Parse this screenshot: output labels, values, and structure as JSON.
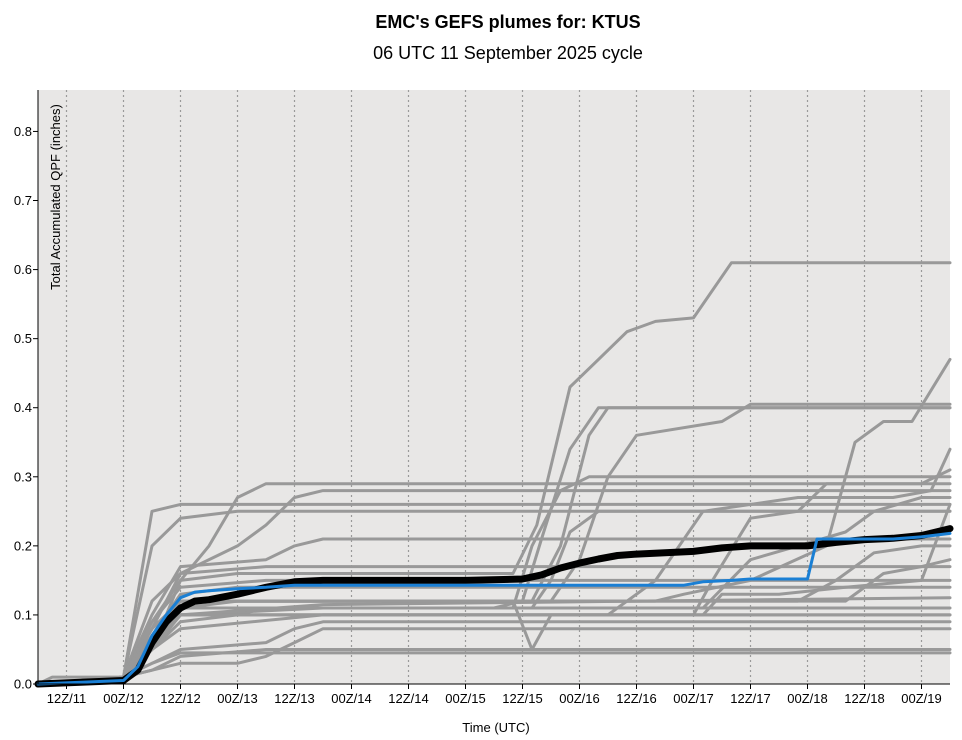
{
  "chart_data": {
    "type": "line",
    "title": "EMC's GEFS plumes for: KTUS",
    "subtitle": "06 UTC 11 September 2025 cycle",
    "xlabel": "Time (UTC)",
    "ylabel": "Total Accumulated QPF  (inches)",
    "x_unit": "hours after 06 UTC 11 September 2025",
    "xlim": [
      0,
      192
    ],
    "ylim": [
      0,
      0.86
    ],
    "yticks": [
      0.0,
      0.1,
      0.2,
      0.3,
      0.4,
      0.5,
      0.6,
      0.7,
      0.8
    ],
    "ytick_labels": [
      "0.0",
      "0.1",
      "0.2",
      "0.3",
      "0.4",
      "0.5",
      "0.6",
      "0.7",
      "0.8"
    ],
    "xticks": [
      6,
      18,
      30,
      42,
      54,
      66,
      78,
      90,
      102,
      114,
      126,
      138,
      150,
      162,
      174,
      186
    ],
    "xtick_labels": [
      "12Z/11",
      "00Z/12",
      "12Z/12",
      "00Z/13",
      "12Z/13",
      "00Z/14",
      "12Z/14",
      "00Z/15",
      "12Z/15",
      "00Z/16",
      "12Z/16",
      "00Z/17",
      "12Z/17",
      "00Z/18",
      "12Z/18",
      "00Z/19"
    ],
    "grid": "vertical dotted",
    "colors": {
      "plot_background": "#e8e7e6",
      "member": "#999999",
      "mean": "#000000",
      "control": "#1a7fd4",
      "grid": "#9a9a9a"
    },
    "members": [
      {
        "x": [
          0,
          3,
          18,
          24,
          30,
          192
        ],
        "y": [
          0.0,
          0.01,
          0.01,
          0.25,
          0.26,
          0.26
        ]
      },
      {
        "x": [
          0,
          18,
          24,
          30,
          42,
          54,
          192
        ],
        "y": [
          0.0,
          0.01,
          0.2,
          0.24,
          0.25,
          0.25,
          0.25
        ]
      },
      {
        "x": [
          0,
          18,
          24,
          30,
          36,
          42,
          48,
          54,
          60,
          192
        ],
        "y": [
          0.0,
          0.01,
          0.05,
          0.15,
          0.2,
          0.27,
          0.29,
          0.29,
          0.29,
          0.29
        ]
      },
      {
        "x": [
          0,
          18,
          24,
          30,
          42,
          48,
          54,
          60,
          192
        ],
        "y": [
          0.0,
          0.01,
          0.08,
          0.16,
          0.2,
          0.23,
          0.27,
          0.28,
          0.28
        ]
      },
      {
        "x": [
          0,
          18,
          24,
          30,
          48,
          54,
          60,
          192
        ],
        "y": [
          0.0,
          0.01,
          0.1,
          0.17,
          0.18,
          0.2,
          0.21,
          0.21
        ]
      },
      {
        "x": [
          0,
          18,
          24,
          30,
          48,
          192
        ],
        "y": [
          0.0,
          0.01,
          0.12,
          0.16,
          0.17,
          0.17
        ]
      },
      {
        "x": [
          0,
          18,
          24,
          30,
          42,
          192
        ],
        "y": [
          0.0,
          0.01,
          0.06,
          0.11,
          0.11,
          0.11
        ]
      },
      {
        "x": [
          0,
          18,
          24,
          30,
          192
        ],
        "y": [
          0.0,
          0.01,
          0.05,
          0.1,
          0.1
        ]
      },
      {
        "x": [
          0,
          18,
          24,
          30,
          48,
          54,
          60,
          192
        ],
        "y": [
          0.0,
          0.01,
          0.03,
          0.05,
          0.06,
          0.08,
          0.09,
          0.09
        ]
      },
      {
        "x": [
          0,
          18,
          24,
          30,
          42,
          48,
          54,
          60,
          192
        ],
        "y": [
          0.0,
          0.01,
          0.02,
          0.03,
          0.03,
          0.04,
          0.06,
          0.08,
          0.08
        ]
      },
      {
        "x": [
          0,
          18,
          24,
          30,
          48,
          192
        ],
        "y": [
          0.0,
          0.01,
          0.02,
          0.04,
          0.05,
          0.05
        ]
      },
      {
        "x": [
          0,
          18,
          24,
          30,
          192
        ],
        "y": [
          0.0,
          0.01,
          0.03,
          0.045,
          0.045
        ]
      },
      {
        "x": [
          0,
          18,
          24,
          30,
          42,
          192
        ],
        "y": [
          0.0,
          0.01,
          0.07,
          0.13,
          0.14,
          0.14
        ]
      },
      {
        "x": [
          0,
          18,
          24,
          30,
          48,
          192
        ],
        "y": [
          0.0,
          0.01,
          0.09,
          0.14,
          0.15,
          0.15
        ]
      },
      {
        "x": [
          0,
          18,
          24,
          30,
          42,
          48,
          60,
          100,
          105,
          112,
          118,
          124,
          130,
          138,
          146,
          192
        ],
        "y": [
          0.0,
          0.01,
          0.09,
          0.15,
          0.16,
          0.16,
          0.16,
          0.16,
          0.23,
          0.43,
          0.47,
          0.51,
          0.525,
          0.53,
          0.61,
          0.61
        ]
      },
      {
        "x": [
          0,
          18,
          24,
          30,
          42,
          60,
          104,
          110,
          116,
          120,
          192
        ],
        "y": [
          0.0,
          0.01,
          0.06,
          0.11,
          0.12,
          0.12,
          0.12,
          0.2,
          0.36,
          0.4,
          0.4
        ]
      },
      {
        "x": [
          0,
          18,
          24,
          30,
          60,
          108,
          114,
          120,
          126,
          144,
          150,
          192
        ],
        "y": [
          0.0,
          0.01,
          0.07,
          0.12,
          0.12,
          0.12,
          0.18,
          0.3,
          0.36,
          0.38,
          0.405,
          0.405
        ]
      },
      {
        "x": [
          0,
          18,
          24,
          30,
          42,
          48,
          60,
          78,
          96,
          102,
          106,
          112,
          118,
          192
        ],
        "y": [
          0.0,
          0.01,
          0.05,
          0.09,
          0.1,
          0.11,
          0.11,
          0.11,
          0.11,
          0.12,
          0.21,
          0.34,
          0.4,
          0.4
        ]
      },
      {
        "x": [
          0,
          18,
          24,
          30,
          60,
          100,
          104,
          110,
          116,
          126,
          192
        ],
        "y": [
          0.0,
          0.01,
          0.05,
          0.1,
          0.11,
          0.11,
          0.2,
          0.28,
          0.3,
          0.3,
          0.3
        ]
      },
      {
        "x": [
          0,
          18,
          24,
          30,
          60,
          104,
          108,
          112,
          118,
          192
        ],
        "y": [
          0.0,
          0.01,
          0.06,
          0.11,
          0.11,
          0.11,
          0.15,
          0.22,
          0.25,
          0.25
        ]
      },
      {
        "x": [
          0,
          18,
          24,
          30,
          60,
          100,
          104,
          108,
          192
        ],
        "y": [
          0.0,
          0.01,
          0.07,
          0.12,
          0.12,
          0.12,
          0.05,
          0.1,
          0.1
        ]
      },
      {
        "x": [
          0,
          18,
          24,
          30,
          60,
          130,
          136,
          150,
          166,
          172,
          178,
          184,
          192
        ],
        "y": [
          0.0,
          0.01,
          0.08,
          0.12,
          0.12,
          0.12,
          0.13,
          0.15,
          0.2,
          0.35,
          0.38,
          0.38,
          0.47
        ]
      },
      {
        "x": [
          0,
          18,
          24,
          30,
          60,
          138,
          142,
          150,
          160,
          166,
          176,
          186,
          192
        ],
        "y": [
          0.0,
          0.01,
          0.05,
          0.1,
          0.1,
          0.1,
          0.15,
          0.24,
          0.25,
          0.29,
          0.29,
          0.29,
          0.31
        ]
      },
      {
        "x": [
          0,
          18,
          24,
          30,
          60,
          140,
          150,
          160,
          170,
          176,
          186,
          192
        ],
        "y": [
          0.0,
          0.01,
          0.07,
          0.11,
          0.11,
          0.11,
          0.18,
          0.2,
          0.22,
          0.25,
          0.27,
          0.27
        ]
      },
      {
        "x": [
          0,
          18,
          24,
          30,
          60,
          120,
          130,
          140,
          160,
          166,
          180,
          188,
          192
        ],
        "y": [
          0.0,
          0.01,
          0.06,
          0.1,
          0.1,
          0.1,
          0.15,
          0.25,
          0.27,
          0.27,
          0.27,
          0.28,
          0.34
        ]
      },
      {
        "x": [
          0,
          18,
          24,
          30,
          60,
          140,
          144,
          156,
          170,
          186,
          192
        ],
        "y": [
          0.0,
          0.01,
          0.05,
          0.08,
          0.1,
          0.1,
          0.13,
          0.13,
          0.14,
          0.15,
          0.26
        ]
      },
      {
        "x": [
          0,
          18,
          24,
          30,
          60,
          160,
          168,
          176,
          186,
          192
        ],
        "y": [
          0.0,
          0.01,
          0.08,
          0.12,
          0.12,
          0.12,
          0.15,
          0.19,
          0.2,
          0.2
        ]
      },
      {
        "x": [
          0,
          18,
          24,
          30,
          60,
          192
        ],
        "y": [
          0.0,
          0.01,
          0.06,
          0.1,
          0.115,
          0.125
        ]
      },
      {
        "x": [
          0,
          18,
          24,
          30,
          60,
          170,
          178,
          186,
          192
        ],
        "y": [
          0.0,
          0.01,
          0.07,
          0.12,
          0.12,
          0.12,
          0.16,
          0.17,
          0.18
        ]
      }
    ],
    "mean": {
      "x": [
        0,
        18,
        21,
        24,
        27,
        30,
        33,
        36,
        42,
        48,
        54,
        60,
        66,
        78,
        90,
        102,
        106,
        110,
        114,
        118,
        122,
        126,
        132,
        138,
        144,
        150,
        156,
        162,
        168,
        174,
        180,
        186,
        192
      ],
      "y": [
        0.0,
        0.005,
        0.02,
        0.06,
        0.09,
        0.11,
        0.12,
        0.122,
        0.13,
        0.14,
        0.148,
        0.15,
        0.15,
        0.15,
        0.15,
        0.152,
        0.158,
        0.168,
        0.175,
        0.181,
        0.186,
        0.188,
        0.19,
        0.192,
        0.197,
        0.2,
        0.2,
        0.2,
        0.205,
        0.209,
        0.211,
        0.215,
        0.225
      ]
    },
    "control": {
      "x": [
        0,
        18,
        21,
        24,
        27,
        30,
        33,
        36,
        42,
        48,
        54,
        60,
        66,
        90,
        102,
        114,
        126,
        136,
        140,
        146,
        150,
        158,
        162,
        164,
        170,
        180,
        186,
        192
      ],
      "y": [
        0.0,
        0.005,
        0.025,
        0.07,
        0.1,
        0.125,
        0.133,
        0.135,
        0.138,
        0.14,
        0.143,
        0.143,
        0.143,
        0.143,
        0.143,
        0.143,
        0.143,
        0.143,
        0.148,
        0.15,
        0.152,
        0.152,
        0.152,
        0.21,
        0.21,
        0.21,
        0.213,
        0.218
      ]
    }
  }
}
